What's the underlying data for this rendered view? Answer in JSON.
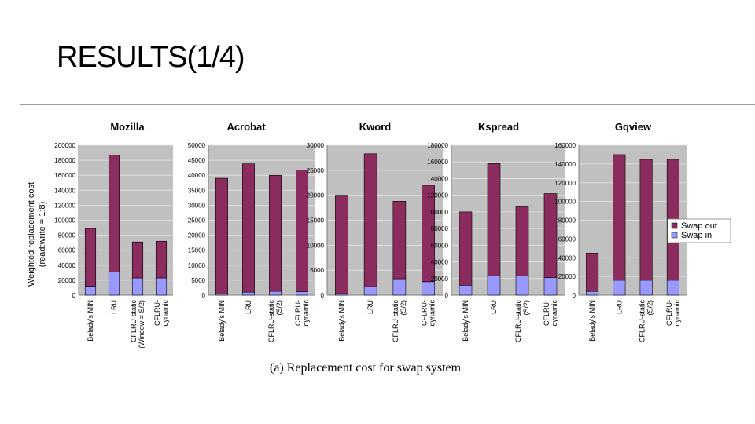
{
  "slide": {
    "title": "RESULTS(1/4)",
    "caption": "(a) Replacement cost for swap system"
  },
  "colors": {
    "swap_out": "#8b2c5e",
    "swap_in": "#9999ff",
    "plot_bg": "#c0c0c0"
  },
  "chart_data": [
    {
      "type": "bar",
      "stacked": true,
      "title": "Mozilla",
      "ylabel": "Weighted replacement cost",
      "ylabel2": "(read:write = 1:8)",
      "categories": [
        "Belady's MIN",
        "LRU",
        "CFLRU-static (Window = S/2)",
        "CFLRU-dynamic"
      ],
      "category_lines": [
        [
          "Belady's MIN"
        ],
        [
          "LRU"
        ],
        [
          "CFLRU-static",
          "(Window = S/2)"
        ],
        [
          "CFLRU-",
          "dynamic"
        ]
      ],
      "series": [
        {
          "name": "Swap in",
          "values": [
            12000,
            31000,
            23000,
            23000
          ]
        },
        {
          "name": "Swap out",
          "values": [
            77000,
            156000,
            48000,
            49000
          ]
        }
      ],
      "ylim": [
        0,
        200000
      ],
      "ticks": [
        "0",
        "20000",
        "40000",
        "60000",
        "80000",
        "100000",
        "120000",
        "140000",
        "160000",
        "180000",
        "200000"
      ]
    },
    {
      "type": "bar",
      "stacked": true,
      "title": "Acrobat",
      "categories": [
        "Belady's MIN",
        "LRU",
        "CFLRU-static (S/2)",
        "CFLRU-dynamic"
      ],
      "category_lines": [
        [
          "Belady's MIN"
        ],
        [
          "LRU"
        ],
        [
          "CFLRU-static",
          "(S/2)"
        ],
        [
          "CFLRU-",
          "dynamic"
        ]
      ],
      "series": [
        {
          "name": "Swap in",
          "values": [
            400,
            1000,
            1300,
            1200
          ]
        },
        {
          "name": "Swap out",
          "values": [
            38600,
            42800,
            38700,
            40600
          ]
        }
      ],
      "ylim": [
        0,
        50000
      ],
      "ticks": [
        "0",
        "5000",
        "10000",
        "15000",
        "20000",
        "25000",
        "30000",
        "35000",
        "40000",
        "45000",
        "50000"
      ]
    },
    {
      "type": "bar",
      "stacked": true,
      "title": "Kword",
      "categories": [
        "Belady's MIN",
        "LRU",
        "CFLRU-static (S/2)",
        "CFLRU-dynamic"
      ],
      "category_lines": [
        [
          "Belady's MIN"
        ],
        [
          "LRU"
        ],
        [
          "CFLRU-static",
          "(S/2)"
        ],
        [
          "CFLRU-",
          "dynamic"
        ]
      ],
      "series": [
        {
          "name": "Swap in",
          "values": [
            300,
            1700,
            3300,
            2700
          ]
        },
        {
          "name": "Swap out",
          "values": [
            19700,
            26600,
            15500,
            19300
          ]
        }
      ],
      "ylim": [
        0,
        30000
      ],
      "ticks": [
        "0",
        "5000",
        "10000",
        "15000",
        "20000",
        "25000",
        "30000"
      ]
    },
    {
      "type": "bar",
      "stacked": true,
      "title": "Kspread",
      "categories": [
        "Belady's MIN",
        "LRU",
        "CFLRU-static (S/2)",
        "CFLRU-dynamic"
      ],
      "category_lines": [
        [
          "Belady's MIN"
        ],
        [
          "LRU"
        ],
        [
          "CFLRU-static",
          "(S/2)"
        ],
        [
          "CFLRU-",
          "dynamic"
        ]
      ],
      "series": [
        {
          "name": "Swap in",
          "values": [
            12000,
            23000,
            23000,
            21000
          ]
        },
        {
          "name": "Swap out",
          "values": [
            88000,
            135000,
            84000,
            101000
          ]
        }
      ],
      "ylim": [
        0,
        180000
      ],
      "ticks": [
        "0",
        "20000",
        "40000",
        "60000",
        "80000",
        "100000",
        "120000",
        "140000",
        "160000",
        "180000"
      ]
    },
    {
      "type": "bar",
      "stacked": true,
      "title": "Gqview",
      "categories": [
        "Belady's MIN",
        "LRU",
        "CFLRU-static (S/2)",
        "CFLRU-dynamic"
      ],
      "category_lines": [
        [
          "Belady's MIN"
        ],
        [
          "LRU"
        ],
        [
          "CFLRU-static",
          "(S/2)"
        ],
        [
          "CFLRU-",
          "dynamic"
        ]
      ],
      "series": [
        {
          "name": "Swap in",
          "values": [
            4000,
            16000,
            16000,
            16000
          ]
        },
        {
          "name": "Swap out",
          "values": [
            41000,
            134000,
            129000,
            129000
          ]
        }
      ],
      "ylim": [
        0,
        160000
      ],
      "ticks": [
        "0",
        "20000",
        "40000",
        "60000",
        "80000",
        "100000",
        "120000",
        "140000",
        "160000"
      ],
      "legend": {
        "position": "right",
        "entries": [
          "Swap out",
          "Swap in"
        ]
      }
    }
  ]
}
